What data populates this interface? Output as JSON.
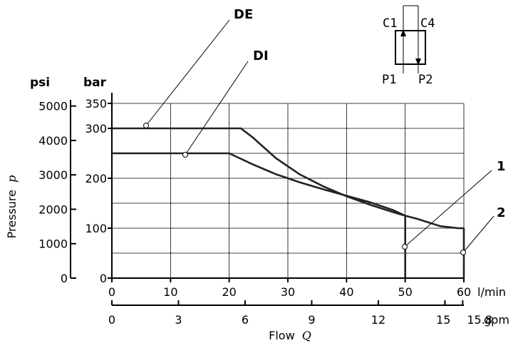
{
  "chart_data": {
    "type": "line",
    "xlabel": "Flow",
    "xlabel_symbol": "Q",
    "ylabel": "Pressure",
    "ylabel_symbol": "p",
    "x_unit_primary": "l/min",
    "x_unit_secondary": "gpm",
    "y_unit_primary": "bar",
    "y_unit_secondary": "psi",
    "xlim": [
      0,
      60
    ],
    "ylim": [
      0,
      350
    ],
    "x_ticks": [
      "0",
      "10",
      "20",
      "30",
      "40",
      "50",
      "60"
    ],
    "x_ticks_secondary": [
      "0",
      "3",
      "6",
      "9",
      "12",
      "15",
      "15.8"
    ],
    "y_ticks": [
      "0",
      "100",
      "200",
      "300",
      "350"
    ],
    "y_ticks_secondary": [
      "0",
      "1000",
      "2000",
      "3000",
      "4000",
      "5000"
    ],
    "grid": true,
    "series": [
      {
        "name": "DE",
        "x": [
          0,
          22,
          24,
          28,
          32,
          36,
          40,
          44,
          48,
          50,
          52,
          56,
          59,
          60
        ],
        "y": [
          300,
          300,
          282,
          240,
          208,
          184,
          164,
          147,
          132,
          125,
          119,
          104,
          100,
          100
        ]
      },
      {
        "name": "DI",
        "x": [
          0,
          20,
          24,
          28,
          32,
          36,
          40,
          44,
          48,
          50
        ],
        "y": [
          250,
          250,
          228,
          208,
          192,
          178,
          165,
          152,
          136,
          125
        ]
      },
      {
        "name": "1",
        "x": [
          50,
          50
        ],
        "y": [
          125,
          0
        ]
      },
      {
        "name": "2",
        "x": [
          60,
          60
        ],
        "y": [
          100,
          0
        ]
      }
    ],
    "annotations": [
      {
        "text": "DE",
        "x": 6,
        "y": 300
      },
      {
        "text": "DI",
        "x": 12.5,
        "y": 250
      },
      {
        "text": "1",
        "x": 50,
        "y": 60
      },
      {
        "text": "2",
        "x": 60,
        "y": 50
      }
    ]
  },
  "symbol": {
    "port_c1": "C1",
    "port_c4": "C4",
    "port_p1": "P1",
    "port_p2": "P2"
  }
}
